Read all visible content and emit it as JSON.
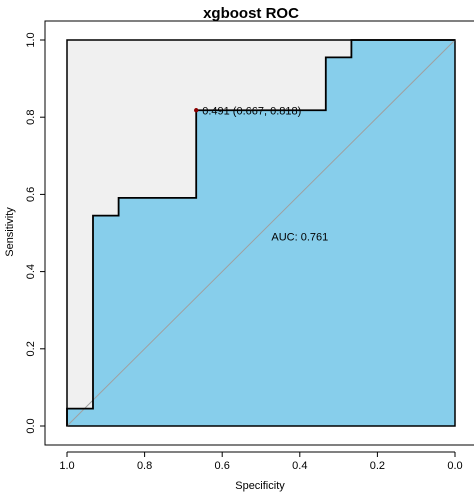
{
  "chart_data": {
    "type": "line",
    "title": "xgboost ROC",
    "xlabel": "Specificity",
    "ylabel": "Sensitivity",
    "xlim": [
      1.0,
      0.0
    ],
    "ylim": [
      0.0,
      1.0
    ],
    "x_reversed": true,
    "xticks": [
      "1.0",
      "0.8",
      "0.6",
      "0.4",
      "0.2",
      "0.0"
    ],
    "yticks": [
      "0.0",
      "0.2",
      "0.4",
      "0.6",
      "0.8",
      "1.0"
    ],
    "x_tick_values": [
      1.0,
      0.8,
      0.6,
      0.4,
      0.2,
      0.0
    ],
    "y_tick_values": [
      0.0,
      0.2,
      0.4,
      0.6,
      0.8,
      1.0
    ],
    "grid": false,
    "series": [
      {
        "values_specificity": [
          1.0,
          1.0,
          0.933,
          0.933,
          0.867,
          0.867,
          0.667,
          0.667,
          0.333,
          0.333,
          0.267,
          0.267,
          0.0
        ],
        "values_sensitivity": [
          0.0,
          0.045,
          0.045,
          0.545,
          0.545,
          0.591,
          0.591,
          0.818,
          0.818,
          0.955,
          0.955,
          1.0,
          1.0
        ]
      }
    ],
    "threshold_point": {
      "specificity": 0.667,
      "sensitivity": 0.818,
      "label": "0.491 (0.667, 0.818)"
    },
    "auc_label": "AUC: 0.761",
    "auc_label_position": {
      "specificity": 0.4,
      "sensitivity": 0.48
    },
    "diagonal": true,
    "colors": {
      "auc_fill": "#87ceeb",
      "ideal_region_fill": "#f0f0f0",
      "curve": "#000000",
      "diagonal": "#a0a0a0",
      "point": "#8b0000"
    }
  }
}
